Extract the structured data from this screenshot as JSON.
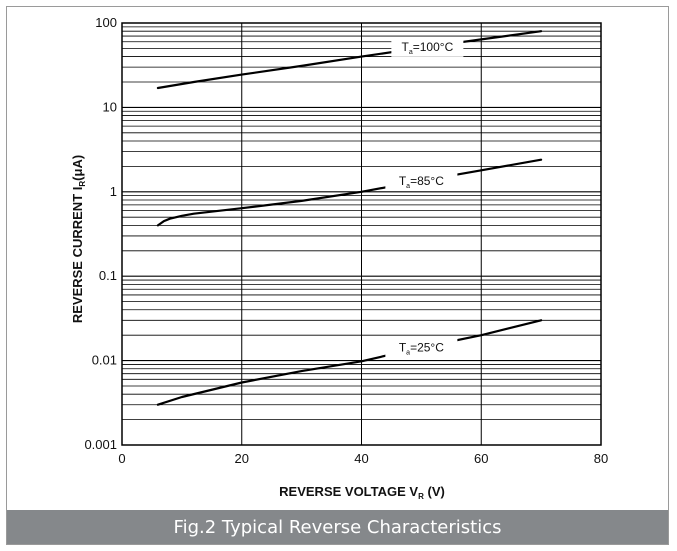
{
  "caption": "Fig.2 Typical Reverse Characteristics",
  "chart_data": {
    "type": "line",
    "title": "Fig.2 Typical Reverse Characteristics",
    "xlabel": {
      "main": "REVERSE VOLTAGE  V",
      "sub": "R",
      "unit": " (V)"
    },
    "ylabel": {
      "main": "REVERSE CURRENT  I",
      "sub": "R",
      "unit": "(μA)"
    },
    "xlim": [
      0,
      80
    ],
    "ylim": [
      0.001,
      100
    ],
    "yscale": "log",
    "grid": true,
    "x_ticks": [
      "0",
      "20",
      "40",
      "60",
      "80"
    ],
    "y_ticks": [
      "0.001",
      "0.01",
      "0.1",
      "1",
      "10",
      "100"
    ],
    "series": [
      {
        "name": "Ta=100°C",
        "label_main": "T",
        "label_sub": "a",
        "label_rest": "=100°C",
        "x": [
          6,
          12,
          20,
          30,
          40,
          50,
          60,
          70
        ],
        "y": [
          17,
          20,
          24.5,
          31,
          40,
          51,
          64,
          80
        ]
      },
      {
        "name": "Ta=85°C",
        "label_main": "T",
        "label_sub": "a",
        "label_rest": "=85°C",
        "x": [
          6,
          7,
          8,
          10,
          12,
          20,
          30,
          40,
          50,
          60,
          70
        ],
        "y": [
          0.4,
          0.45,
          0.48,
          0.52,
          0.55,
          0.64,
          0.78,
          1.0,
          1.35,
          1.8,
          2.4
        ]
      },
      {
        "name": "Ta=25°C",
        "label_main": "T",
        "label_sub": "a",
        "label_rest": "=25°C",
        "x": [
          6,
          10,
          20,
          30,
          40,
          50,
          60,
          70
        ],
        "y": [
          0.003,
          0.0037,
          0.0055,
          0.0075,
          0.0098,
          0.0143,
          0.02,
          0.03
        ]
      }
    ],
    "series_label_x": [
      51,
      50,
      50
    ]
  }
}
